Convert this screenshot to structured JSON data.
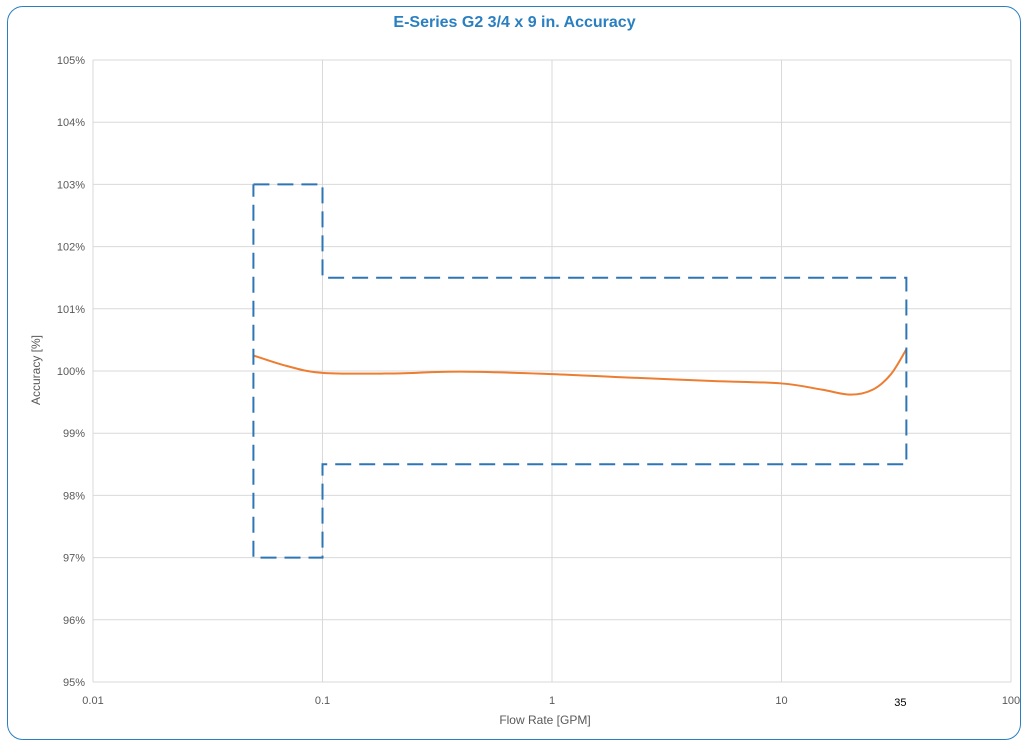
{
  "chart_data": {
    "type": "line",
    "title": "E-Series G2 3/4 x 9 in. Accuracy",
    "xlabel": "Flow Rate [GPM]",
    "ylabel": "Accuracy [%]",
    "x_scale": "log",
    "xlim": [
      0.01,
      100
    ],
    "ylim": [
      95,
      105
    ],
    "x_ticks": [
      "0.01",
      "0.1",
      "1",
      "10",
      "100"
    ],
    "extra_x_tick": "35",
    "y_ticks": [
      "95%",
      "96%",
      "97%",
      "98%",
      "99%",
      "100%",
      "101%",
      "102%",
      "103%",
      "104%",
      "105%"
    ],
    "grid": true,
    "colors": {
      "curve": "#ed7d31",
      "envelope": "#2e75b6",
      "frame": "#2a7fc1"
    },
    "series": [
      {
        "style": "solid",
        "x": [
          0.05,
          0.07,
          0.1,
          0.2,
          0.4,
          1,
          2,
          5,
          10,
          15,
          20,
          25,
          30,
          35
        ],
        "y": [
          100.25,
          100.08,
          99.97,
          99.96,
          99.99,
          99.95,
          99.9,
          99.84,
          99.8,
          99.7,
          99.62,
          99.7,
          99.95,
          100.35
        ]
      },
      {
        "style": "dashed",
        "x": [
          0.05,
          0.1,
          0.1,
          35,
          35,
          0.1,
          0.1,
          0.05,
          0.05
        ],
        "y": [
          103,
          103,
          101.5,
          101.5,
          98.5,
          98.5,
          97,
          97,
          103
        ]
      }
    ]
  }
}
